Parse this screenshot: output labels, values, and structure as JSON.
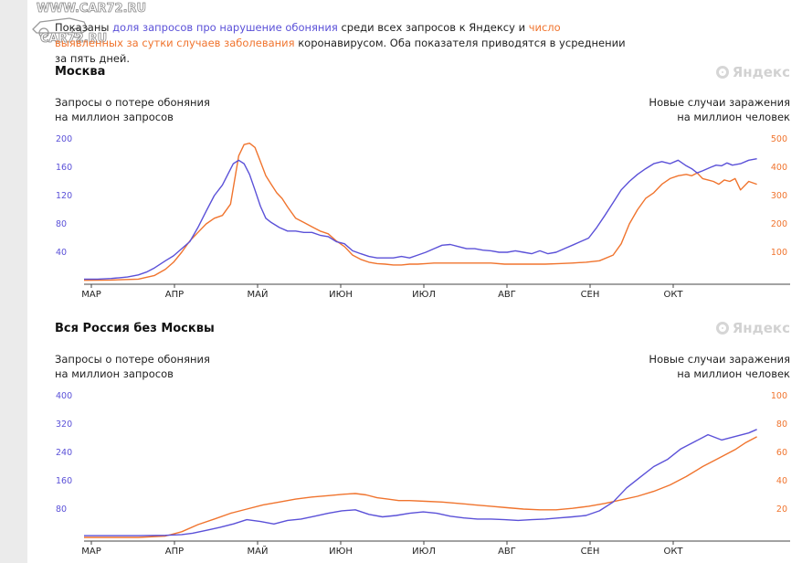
{
  "watermark": [
    "WWW.CAR72.RU",
    "CAR72.RU"
  ],
  "intro": {
    "t1": "Показаны ",
    "blue": "доля запросов про нарушение обоняния",
    "t2": " среди всех запросов к Яндексу и ",
    "orange": "число выявленных за сутки случаев заболевания",
    "t3": " коронавирусом. Оба показателя приводятся в усреднении за пять дней."
  },
  "logo_text": "Яндекс",
  "colors": {
    "queries": "#5b51d8",
    "cases": "#f0742e",
    "axis": "#444444"
  },
  "months": [
    "МАР",
    "АПР",
    "МАЙ",
    "ИЮН",
    "ИЮЛ",
    "АВГ",
    "СЕН",
    "ОКТ"
  ],
  "chart_data": [
    {
      "type": "line",
      "title": "Москва",
      "left_axis_label": [
        "Запросы о потере обоняния",
        "на миллион запросов"
      ],
      "right_axis_label": [
        "Новые случаи заражения",
        "на миллион человек"
      ],
      "left_ticks": [
        40,
        80,
        120,
        160,
        200
      ],
      "right_ticks": [
        100,
        200,
        300,
        400,
        500
      ],
      "left_ylim": [
        0,
        200
      ],
      "right_ylim": [
        0,
        500
      ],
      "x_days_per_month": 30.5,
      "series": [
        {
          "axis": "left",
          "color": "#5b51d8",
          "x": [
            0,
            5,
            10,
            13,
            16,
            20,
            23,
            26,
            30,
            33,
            36,
            39,
            42,
            45,
            48,
            51,
            53,
            55,
            57,
            59,
            61,
            63,
            65,
            67,
            69,
            72,
            75,
            78,
            81,
            84,
            87,
            90,
            93,
            96,
            99,
            102,
            105,
            108,
            111,
            114,
            117,
            120,
            123,
            126,
            129,
            132,
            135,
            138,
            141,
            144,
            147,
            150,
            153,
            156,
            159,
            162,
            165,
            168,
            171,
            174,
            177,
            180,
            183,
            186,
            189,
            192,
            195,
            198,
            201,
            204,
            207,
            210,
            213,
            216,
            219,
            222,
            224,
            226,
            228,
            231,
            233,
            235,
            237,
            239,
            242,
            245,
            248
          ],
          "y": [
            2,
            2,
            3,
            4,
            5,
            8,
            12,
            18,
            28,
            35,
            45,
            55,
            75,
            98,
            120,
            135,
            150,
            165,
            170,
            165,
            150,
            128,
            105,
            88,
            82,
            75,
            70,
            70,
            68,
            68,
            64,
            62,
            55,
            52,
            42,
            38,
            34,
            32,
            32,
            32,
            34,
            32,
            36,
            40,
            45,
            50,
            51,
            48,
            45,
            45,
            43,
            42,
            40,
            40,
            42,
            40,
            38,
            42,
            38,
            40,
            45,
            50,
            55,
            60,
            75,
            92,
            110,
            128,
            140,
            150,
            158,
            165,
            168,
            165,
            170,
            162,
            158,
            152,
            155,
            160,
            163,
            162,
            166,
            163,
            165,
            170,
            172
          ]
        },
        {
          "axis": "right",
          "color": "#f0742e",
          "x": [
            0,
            10,
            20,
            26,
            30,
            33,
            36,
            39,
            42,
            45,
            48,
            51,
            54,
            57,
            59,
            61,
            63,
            65,
            67,
            69,
            71,
            73,
            75,
            78,
            81,
            84,
            87,
            90,
            93,
            96,
            99,
            102,
            105,
            108,
            111,
            114,
            117,
            120,
            123,
            126,
            129,
            132,
            135,
            140,
            145,
            150,
            155,
            160,
            165,
            170,
            175,
            180,
            185,
            190,
            195,
            198,
            201,
            204,
            207,
            210,
            213,
            216,
            219,
            222,
            224,
            226,
            228,
            230,
            232,
            234,
            236,
            238,
            240,
            242,
            245,
            248
          ],
          "y": [
            1,
            2,
            5,
            18,
            40,
            65,
            100,
            140,
            170,
            200,
            220,
            230,
            270,
            440,
            480,
            485,
            470,
            420,
            370,
            340,
            310,
            290,
            260,
            220,
            205,
            190,
            175,
            165,
            140,
            120,
            90,
            75,
            65,
            60,
            58,
            55,
            55,
            58,
            58,
            60,
            62,
            62,
            62,
            62,
            62,
            62,
            58,
            58,
            58,
            58,
            60,
            62,
            65,
            70,
            90,
            130,
            200,
            250,
            290,
            310,
            340,
            360,
            370,
            375,
            370,
            380,
            360,
            355,
            350,
            340,
            355,
            350,
            360,
            320,
            350,
            340
          ]
        }
      ]
    },
    {
      "type": "line",
      "title": "Вся Россия без Москвы",
      "left_axis_label": [
        "Запросы о потере обоняния",
        "на миллион запросов"
      ],
      "right_axis_label": [
        "Новые случаи заражения",
        "на миллион человек"
      ],
      "left_ticks": [
        80,
        160,
        240,
        320,
        400
      ],
      "right_ticks": [
        20,
        40,
        60,
        80,
        100
      ],
      "left_ylim": [
        0,
        400
      ],
      "right_ylim": [
        0,
        100
      ],
      "x_days_per_month": 30.5,
      "series": [
        {
          "axis": "left",
          "color": "#5b51d8",
          "x": [
            0,
            10,
            20,
            30,
            36,
            40,
            45,
            50,
            55,
            60,
            65,
            70,
            75,
            80,
            85,
            90,
            95,
            100,
            105,
            110,
            115,
            120,
            125,
            130,
            135,
            140,
            145,
            150,
            155,
            160,
            165,
            170,
            175,
            180,
            185,
            190,
            195,
            200,
            205,
            210,
            215,
            220,
            225,
            230,
            235,
            240,
            245,
            248
          ],
          "y": [
            5,
            5,
            5,
            6,
            8,
            12,
            20,
            28,
            38,
            50,
            45,
            38,
            48,
            52,
            60,
            68,
            75,
            78,
            65,
            58,
            62,
            68,
            72,
            68,
            60,
            55,
            52,
            52,
            50,
            48,
            50,
            52,
            55,
            58,
            62,
            75,
            100,
            140,
            170,
            200,
            220,
            250,
            270,
            290,
            275,
            285,
            295,
            305
          ]
        },
        {
          "axis": "right",
          "color": "#f0742e",
          "x": [
            0,
            20,
            30,
            36,
            42,
            48,
            54,
            60,
            66,
            72,
            78,
            84,
            90,
            96,
            100,
            104,
            108,
            112,
            116,
            120,
            126,
            132,
            138,
            144,
            150,
            156,
            162,
            168,
            174,
            180,
            186,
            192,
            198,
            204,
            210,
            216,
            222,
            228,
            234,
            240,
            244,
            248
          ],
          "y": [
            0,
            0,
            1,
            4,
            9,
            13,
            17,
            20,
            23,
            25,
            27,
            28.5,
            29.5,
            30.5,
            31,
            30,
            28,
            27,
            26,
            26,
            25.5,
            25,
            24,
            23,
            22,
            21,
            20,
            19.5,
            19.5,
            20.5,
            22,
            24,
            26.5,
            29,
            32.5,
            37,
            43,
            50,
            56,
            62,
            67,
            71
          ]
        }
      ]
    }
  ]
}
